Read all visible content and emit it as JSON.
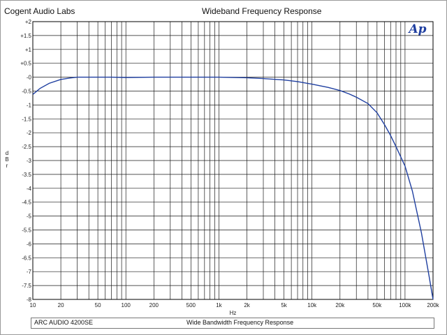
{
  "header": {
    "lab_name": "Cogent Audio Labs",
    "title": "Wideband Frequency Response",
    "logo_text": "Ap"
  },
  "footer": {
    "device": "ARC AUDIO 4200SE",
    "description": "Wide Bandwidth Frequency Response"
  },
  "chart_data": {
    "type": "line",
    "title": "Wideband Frequency Response",
    "xlabel": "Hz",
    "ylabel": "dBr",
    "x_scale": "log",
    "xlim": [
      10,
      200000
    ],
    "ylim": [
      -8,
      2
    ],
    "grid": true,
    "x_ticks": [
      "10",
      "20",
      "50",
      "100",
      "200",
      "500",
      "1k",
      "2k",
      "5k",
      "10k",
      "20k",
      "50k",
      "100k",
      "200k"
    ],
    "x_tick_values": [
      10,
      20,
      50,
      100,
      200,
      500,
      1000,
      2000,
      5000,
      10000,
      20000,
      50000,
      100000,
      200000
    ],
    "y_ticks": [
      "+2",
      "+1.5",
      "+1",
      "+0.5",
      "-0",
      "-0.5",
      "-1",
      "-1.5",
      "-2",
      "-2.5",
      "-3",
      "-3.5",
      "-4",
      "-4.5",
      "-5",
      "-5.5",
      "-6",
      "-6.5",
      "-7",
      "-7.5",
      "-8"
    ],
    "y_tick_values": [
      2,
      1.5,
      1,
      0.5,
      0,
      -0.5,
      -1,
      -1.5,
      -2,
      -2.5,
      -3,
      -3.5,
      -4,
      -4.5,
      -5,
      -5.5,
      -6,
      -6.5,
      -7,
      -7.5,
      -8
    ],
    "series": [
      {
        "color": "#1f3fa0",
        "x": [
          10,
          12,
          15,
          20,
          25,
          30,
          40,
          50,
          70,
          100,
          200,
          500,
          1000,
          2000,
          3000,
          5000,
          7000,
          10000,
          15000,
          20000,
          25000,
          30000,
          40000,
          50000,
          60000,
          70000,
          80000,
          100000,
          120000,
          150000,
          180000,
          200000
        ],
        "y": [
          -0.62,
          -0.4,
          -0.22,
          -0.08,
          -0.03,
          0,
          0,
          0,
          0,
          -0.01,
          0,
          0,
          0,
          -0.02,
          -0.05,
          -0.1,
          -0.16,
          -0.25,
          -0.37,
          -0.48,
          -0.6,
          -0.72,
          -0.95,
          -1.28,
          -1.7,
          -2.1,
          -2.5,
          -3.2,
          -4.1,
          -5.6,
          -7.1,
          -8.0
        ]
      }
    ]
  }
}
